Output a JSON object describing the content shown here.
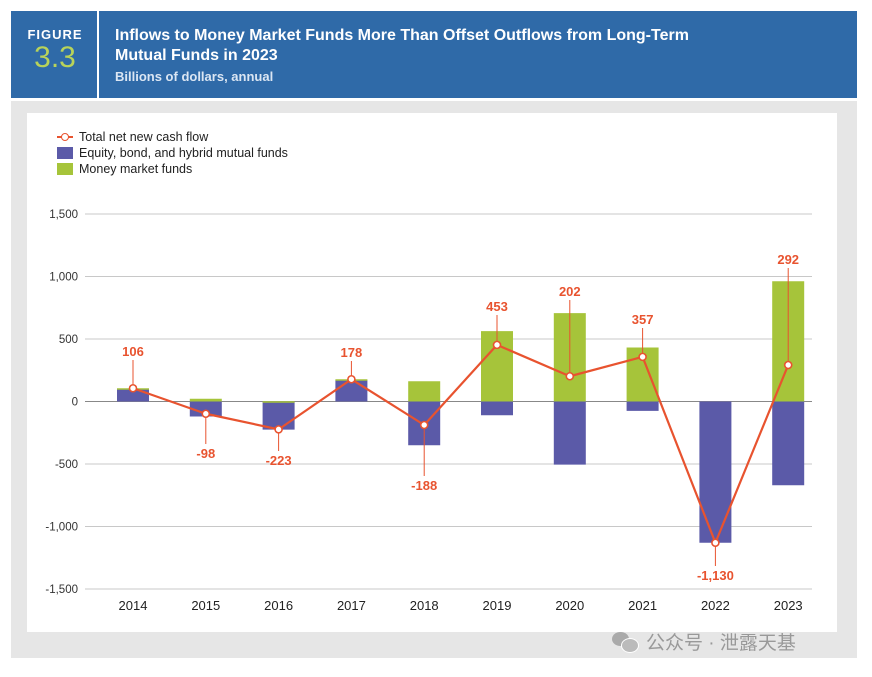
{
  "header": {
    "figure_label": "FIGURE",
    "figure_number": "3.3",
    "title_line1": "Inflows to Money Market Funds More Than Offset Outflows from Long-Term",
    "title_line2": "Mutual Funds in 2023",
    "subtitle": "Billions of dollars, annual"
  },
  "legend": {
    "total": "Total net new cash flow",
    "equity": "Equity, bond, and hybrid mutual funds",
    "mmf": "Money market funds"
  },
  "watermark": "公众号 · 泄露天基",
  "colors": {
    "header_bg": "#2f6aa8",
    "equity": "#5b5aa8",
    "mmf": "#a6c43a",
    "line": "#e8532f"
  },
  "chart_data": {
    "type": "bar",
    "stacked": true,
    "title": "Inflows to Money Market Funds More Than Offset Outflows from Long-Term Mutual Funds in 2023",
    "ylabel": "Billions of dollars, annual",
    "ylim": [
      -1500,
      1500
    ],
    "yticks": [
      1500,
      1000,
      500,
      0,
      -500,
      -1000,
      -1500
    ],
    "ytick_labels": [
      "1,500",
      "1,000",
      "500",
      "0",
      "-500",
      "-1,000",
      "-1,500"
    ],
    "categories": [
      "2014",
      "2015",
      "2016",
      "2017",
      "2018",
      "2019",
      "2020",
      "2021",
      "2022",
      "2023"
    ],
    "series": [
      {
        "name": "Equity, bond, and hybrid mutual funds",
        "type": "bar",
        "values": [
          100,
          -120,
          -225,
          170,
          -350,
          -110,
          -505,
          -75,
          -1130,
          -670
        ]
      },
      {
        "name": "Money market funds",
        "type": "bar",
        "values": [
          6,
          22,
          2,
          8,
          162,
          563,
          707,
          432,
          0,
          962
        ]
      },
      {
        "name": "Total net new cash flow",
        "type": "line",
        "values": [
          106,
          -98,
          -223,
          178,
          -188,
          453,
          202,
          357,
          -1130,
          292
        ],
        "labels": [
          "106",
          "-98",
          "-223",
          "178",
          "-188",
          "453",
          "202",
          "357",
          "-1,130",
          "292"
        ]
      }
    ]
  }
}
